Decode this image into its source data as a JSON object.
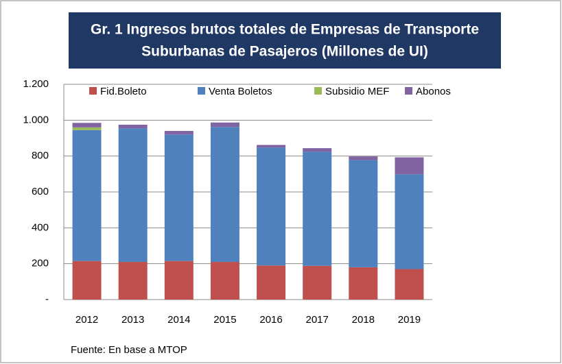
{
  "chart_data": {
    "type": "stacked_bar",
    "title": "Gr. 1 Ingresos  brutos totales de Empresas de Transporte Suburbanas de Pasajeros  (Millones de UI)",
    "categories": [
      "2012",
      "2013",
      "2014",
      "2015",
      "2016",
      "2017",
      "2018",
      "2019"
    ],
    "series": [
      {
        "name": "Fid.Boleto",
        "color": "#c0504d",
        "values": [
          215,
          210,
          215,
          210,
          190,
          188,
          180,
          170
        ]
      },
      {
        "name": "Venta Boletos",
        "color": "#4f81bd",
        "values": [
          730,
          745,
          705,
          752,
          657,
          636,
          598,
          528
        ]
      },
      {
        "name": "Subsidio MEF",
        "color": "#9bbb59",
        "values": [
          15,
          0,
          0,
          0,
          0,
          0,
          0,
          0
        ]
      },
      {
        "name": "Abonos",
        "color": "#8064a2",
        "values": [
          25,
          20,
          20,
          25,
          15,
          20,
          20,
          95
        ]
      }
    ],
    "ylim": [
      0,
      1200
    ],
    "yticks": [
      {
        "value": 0,
        "label": "-"
      },
      200,
      400,
      600,
      800,
      {
        "value": 1000,
        "label": "1.000"
      },
      {
        "value": 1200,
        "label": "1.200"
      }
    ],
    "grid": true,
    "legend": "top",
    "source": "Fuente: En base a MTOP"
  }
}
